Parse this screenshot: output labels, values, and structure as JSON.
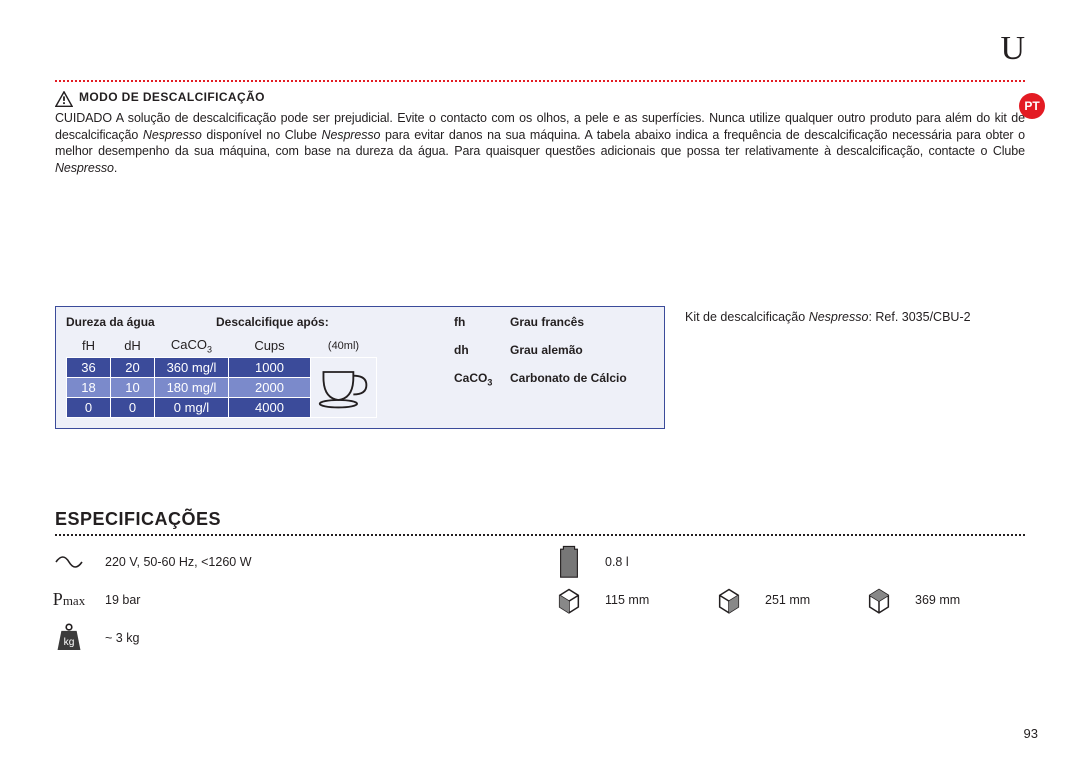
{
  "logo_letter": "U",
  "lang_badge": "PT",
  "page_number": "93",
  "descaling": {
    "title": "MODO DE DESCALCIFICAÇÃO",
    "text_prefix": "CUIDADO A solução de descalcificação pode ser prejudicial. Evite o contacto com os olhos, a pele e as superfícies. Nunca utilize qualquer outro produto para além do kit de descalcificação ",
    "text_ital1": "Nespresso",
    "text_mid1": " disponível no Clube ",
    "text_ital2": "Nespresso",
    "text_mid2": " para evitar danos na sua máquina. A tabela abaixo indica a frequência de descalcificação necessária para obter o melhor desempenho da sua máquina, com base na dureza da água. Para quaisquer questões adicionais que possa ter relativamente à descalcificação, contacte o Clube ",
    "text_ital3": "Nespresso",
    "text_suffix": "."
  },
  "hardness": {
    "header_left": "Dureza da água",
    "header_right": "Descalcifique após:",
    "col_fh": "fH",
    "col_dh": "dH",
    "col_caco3": "CaCO",
    "col_caco3_sub": "3",
    "col_cups": "Cups",
    "col_cups_size": "(40ml)",
    "rows": [
      {
        "fh": "36",
        "dh": "20",
        "caco3": "360 mg/l",
        "cups": "1000",
        "shade": "dark"
      },
      {
        "fh": "18",
        "dh": "10",
        "caco3": "180 mg/l",
        "cups": "2000",
        "shade": "light"
      },
      {
        "fh": "0",
        "dh": "0",
        "caco3": "0 mg/l",
        "cups": "4000",
        "shade": "dark"
      }
    ],
    "legend": {
      "fh_k": "fh",
      "fh_v": "Grau francês",
      "dh_k": "dh",
      "dh_v": "Grau alemão",
      "caco3_k": "CaCO",
      "caco3_sub": "3",
      "caco3_v": "Carbonato de Cálcio"
    },
    "colors": {
      "box_border": "#3b4b9a",
      "box_bg": "#eef0f8",
      "row_dark": "#3b4b9a",
      "row_light": "#7b8acb"
    }
  },
  "kit": {
    "prefix": "Kit de descalcificação ",
    "ital": "Nespresso",
    "suffix": ": Ref. 3035/CBU-2"
  },
  "specs": {
    "title": "ESPECIFICAÇÕES",
    "power": "220 V, 50-60 Hz, <1260 W",
    "pressure": "19 bar",
    "weight": "~ 3 kg",
    "capacity": "0.8 l",
    "dim_w": "115 mm",
    "dim_d": "251 mm",
    "dim_h": "369 mm"
  },
  "colors": {
    "accent_red": "#e31b23",
    "text": "#231f20"
  }
}
